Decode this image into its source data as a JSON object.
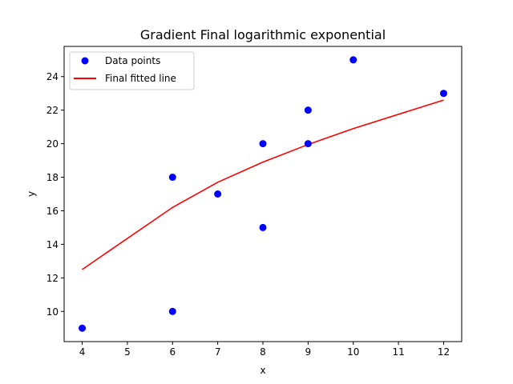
{
  "chart_data": {
    "type": "scatter",
    "title": "Gradient Final logarithmic exponential",
    "xlabel": "x",
    "ylabel": "y",
    "xlim": [
      3.6,
      12.4
    ],
    "ylim": [
      8.2,
      25.8
    ],
    "xticks": [
      4,
      5,
      6,
      7,
      8,
      9,
      10,
      11,
      12
    ],
    "yticks": [
      10,
      12,
      14,
      16,
      18,
      20,
      22,
      24
    ],
    "grid": false,
    "legend_position": "top-left",
    "series": [
      {
        "name": "Data points",
        "kind": "scatter",
        "color": "#0000ff",
        "points": [
          {
            "x": 4,
            "y": 9
          },
          {
            "x": 6,
            "y": 18
          },
          {
            "x": 6,
            "y": 10
          },
          {
            "x": 7,
            "y": 17
          },
          {
            "x": 8,
            "y": 20
          },
          {
            "x": 8,
            "y": 15
          },
          {
            "x": 9,
            "y": 22
          },
          {
            "x": 9,
            "y": 20
          },
          {
            "x": 10,
            "y": 25
          },
          {
            "x": 12,
            "y": 23
          }
        ]
      },
      {
        "name": "Final fitted line",
        "kind": "line",
        "color": "#ff0000",
        "points": [
          {
            "x": 4,
            "y": 12.5
          },
          {
            "x": 6,
            "y": 16.2
          },
          {
            "x": 7,
            "y": 17.7
          },
          {
            "x": 8,
            "y": 18.9
          },
          {
            "x": 9,
            "y": 19.95
          },
          {
            "x": 10,
            "y": 20.9
          },
          {
            "x": 12,
            "y": 22.6
          }
        ]
      }
    ]
  }
}
